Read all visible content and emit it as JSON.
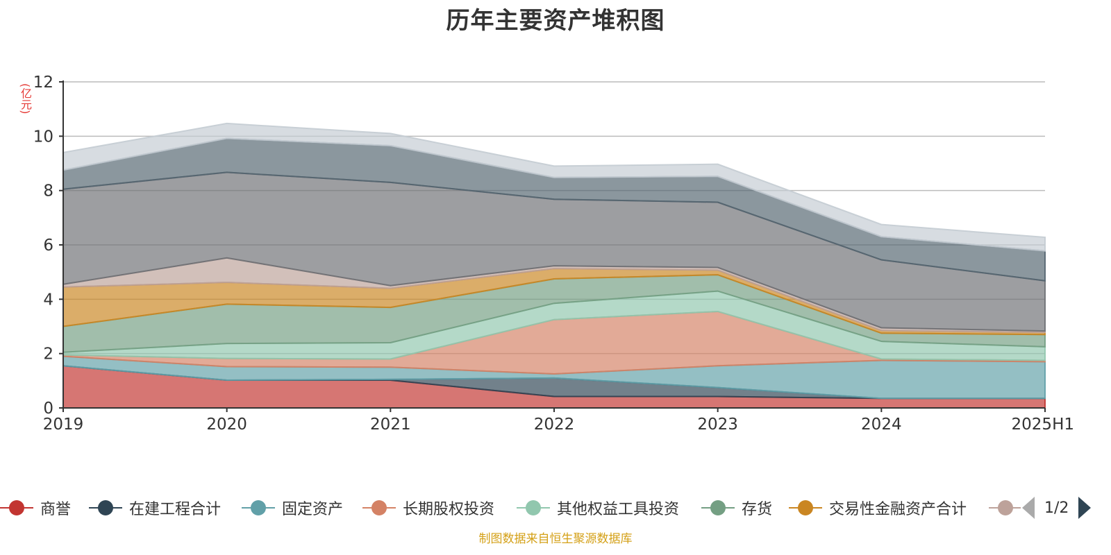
{
  "title": "历年主要资产堆积图",
  "unit_label": "(亿元)",
  "source": "制图数据来自恒生聚源数据库",
  "pager": {
    "text": "1/2"
  },
  "chart_data": {
    "type": "area",
    "stacked": true,
    "categories": [
      "2019",
      "2020",
      "2021",
      "2022",
      "2023",
      "2024",
      "2025H1"
    ],
    "yticks": [
      "0",
      "2",
      "4",
      "6",
      "8",
      "10",
      "12"
    ],
    "ylim": [
      0,
      12
    ],
    "ylabel": "(亿元)",
    "grid": true,
    "legend_position": "bottom",
    "series": [
      {
        "name": "商誉",
        "color": "#c23531",
        "values": [
          1.55,
          1.02,
          1.02,
          0.42,
          0.42,
          0.35,
          0.35
        ]
      },
      {
        "name": "在建工程合计",
        "color": "#2f4554",
        "values": [
          0.0,
          0.0,
          0.03,
          0.68,
          0.33,
          0.0,
          0.0
        ]
      },
      {
        "name": "固定资产",
        "color": "#61a0a8",
        "values": [
          0.35,
          0.5,
          0.45,
          0.15,
          0.8,
          1.4,
          1.35
        ]
      },
      {
        "name": "长期股权投资",
        "color": "#d48265",
        "values": [
          0.05,
          0.3,
          0.3,
          2.0,
          2.0,
          0.05,
          0.05
        ]
      },
      {
        "name": "其他权益工具投资",
        "color": "#91c7ae",
        "values": [
          0.1,
          0.55,
          0.6,
          0.6,
          0.75,
          0.65,
          0.5
        ]
      },
      {
        "name": "存货",
        "color": "#749f83",
        "values": [
          0.95,
          1.45,
          1.3,
          0.9,
          0.6,
          0.3,
          0.45
        ]
      },
      {
        "name": "交易性金融资产合计",
        "color": "#ca8622",
        "values": [
          1.45,
          0.8,
          0.7,
          0.38,
          0.17,
          0.1,
          0.08
        ]
      },
      {
        "color": "#bda29a",
        "values": [
          0.1,
          0.9,
          0.1,
          0.1,
          0.1,
          0.1,
          0.05
        ]
      },
      {
        "color": "#6e7074",
        "values": [
          3.5,
          3.15,
          3.8,
          2.45,
          2.4,
          2.5,
          1.85
        ]
      },
      {
        "color": "#546570",
        "values": [
          0.7,
          1.25,
          1.35,
          0.8,
          0.95,
          0.85,
          1.1
        ]
      },
      {
        "color": "#c4ccd3",
        "values": [
          0.65,
          0.55,
          0.45,
          0.42,
          0.45,
          0.45,
          0.5
        ]
      }
    ]
  }
}
